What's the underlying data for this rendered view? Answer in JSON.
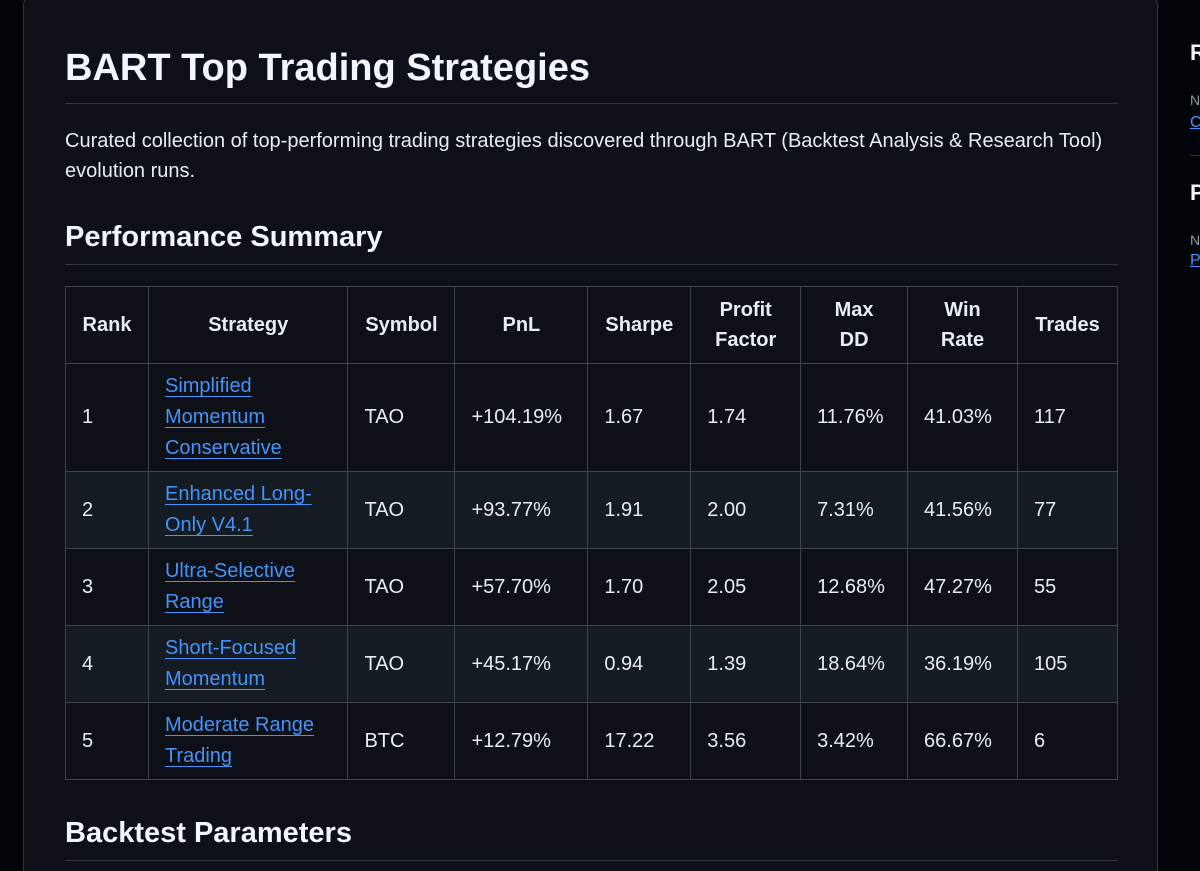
{
  "readme": {
    "title": "BART Top Trading Strategies",
    "intro": "Curated collection of top-performing trading strategies discovered through BART (Backtest Analysis & Research Tool) evolution runs.",
    "performance_heading": "Performance Summary",
    "backtest_heading": "Backtest Parameters"
  },
  "table": {
    "headers": {
      "rank": "Rank",
      "strategy": "Strategy",
      "symbol": "Symbol",
      "pnl": "PnL",
      "sharpe": "Sharpe",
      "profit_factor_1": "Profit",
      "profit_factor_2": "Factor",
      "max_dd_1": "Max",
      "max_dd_2": "DD",
      "win_rate_1": "Win",
      "win_rate_2": "Rate",
      "trades": "Trades"
    },
    "rows": [
      {
        "rank": "1",
        "strategy_lines": [
          "Simplified",
          "Momentum",
          "Conservative"
        ],
        "symbol": "TAO",
        "pnl": "+104.19%",
        "sharpe": "1.67",
        "profit_factor": "1.74",
        "max_dd": "11.76%",
        "win_rate": "41.03%",
        "trades": "117"
      },
      {
        "rank": "2",
        "strategy_lines": [
          "Enhanced Long-",
          "Only V4.1"
        ],
        "symbol": "TAO",
        "pnl": "+93.77%",
        "sharpe": "1.91",
        "profit_factor": "2.00",
        "max_dd": "7.31%",
        "win_rate": "41.56%",
        "trades": "77"
      },
      {
        "rank": "3",
        "strategy_lines": [
          "Ultra-Selective",
          "Range"
        ],
        "symbol": "TAO",
        "pnl": "+57.70%",
        "sharpe": "1.70",
        "profit_factor": "2.05",
        "max_dd": "12.68%",
        "win_rate": "47.27%",
        "trades": "55"
      },
      {
        "rank": "4",
        "strategy_lines": [
          "Short-Focused",
          "Momentum"
        ],
        "symbol": "TAO",
        "pnl": "+45.17%",
        "sharpe": "0.94",
        "profit_factor": "1.39",
        "max_dd": "18.64%",
        "win_rate": "36.19%",
        "trades": "105"
      },
      {
        "rank": "5",
        "strategy_lines": [
          "Moderate Range",
          "Trading"
        ],
        "symbol": "BTC",
        "pnl": "+12.79%",
        "sharpe": "17.22",
        "profit_factor": "3.56",
        "max_dd": "3.42%",
        "win_rate": "66.67%",
        "trades": "6"
      }
    ]
  },
  "sidebar": {
    "section_1_heading": "R",
    "section_1_text": "N",
    "section_1_link": "C",
    "section_2_heading": "P",
    "section_2_text": "N",
    "section_2_link": "P"
  },
  "colors": {
    "background": "#0d1117",
    "alt_row": "#151b23",
    "border": "#3d444d",
    "link": "#4493f8",
    "text": "#e6edf3",
    "accent": "#f78166"
  }
}
